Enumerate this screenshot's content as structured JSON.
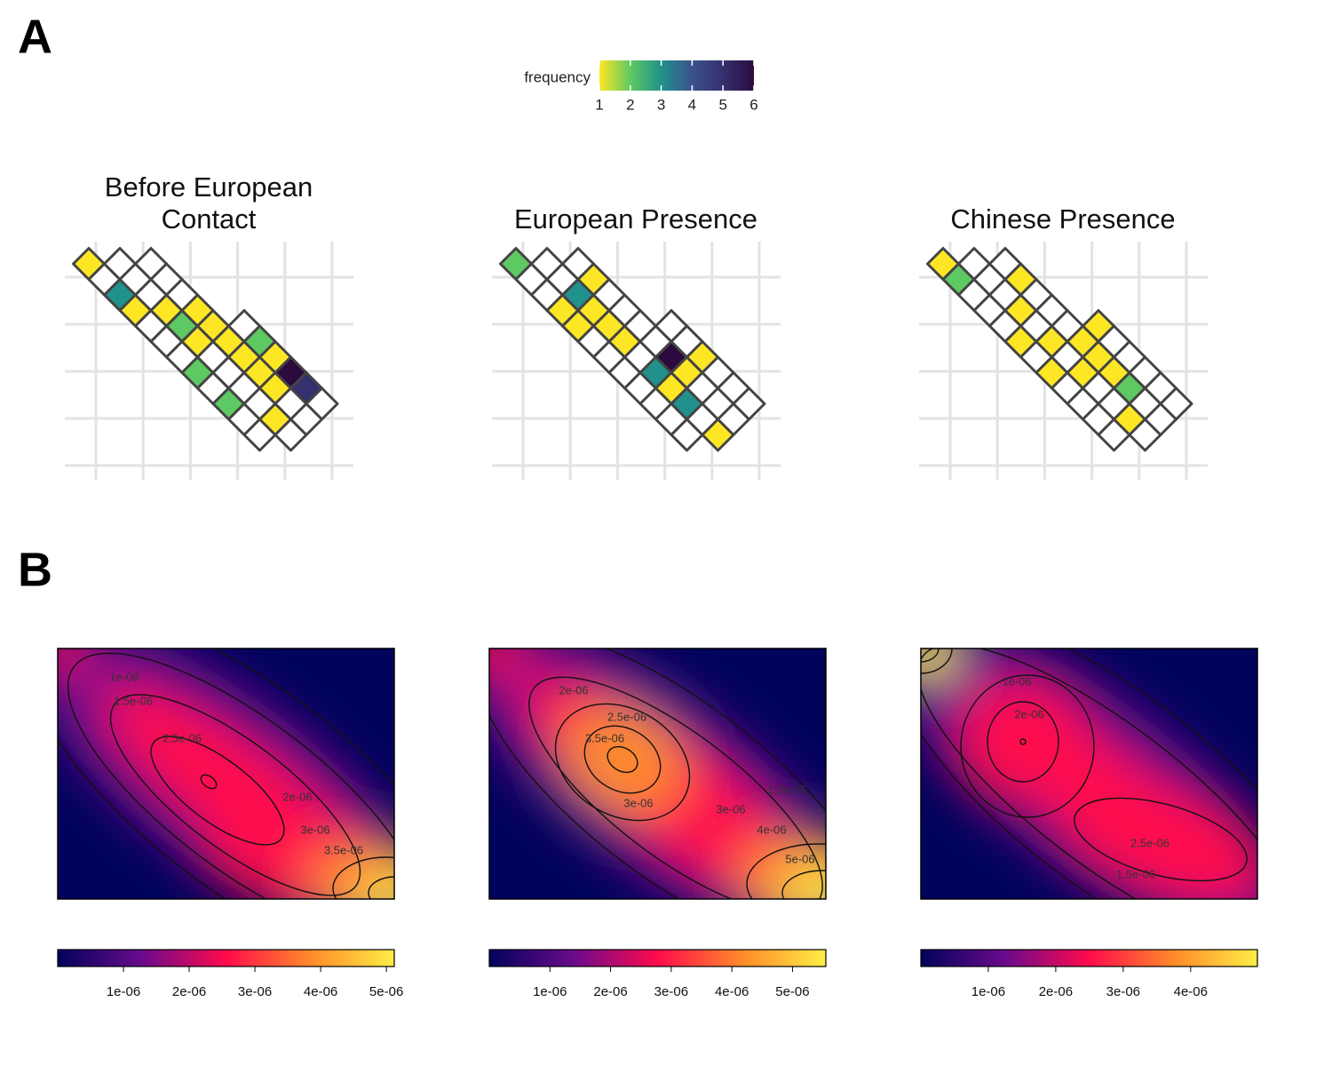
{
  "panel_labels": {
    "a": "A",
    "b": "B"
  },
  "frequency_legend": {
    "title": "frequency",
    "lim": [
      1,
      6
    ],
    "ticks": [
      1,
      2,
      3,
      4,
      5,
      6
    ],
    "colors": [
      "#fde725",
      "#5ec962",
      "#21918c",
      "#3b528b",
      "#35306e",
      "#2b0b3f"
    ]
  },
  "chart_data": [
    {
      "type": "grid-map",
      "title": "Before European Contact",
      "values": [
        [
          1
        ],
        [
          null,
          null
        ],
        [
          3,
          null,
          null
        ],
        [
          1,
          null,
          null
        ],
        [
          null,
          1,
          null
        ],
        [
          null,
          2,
          1
        ],
        [
          null,
          1,
          1
        ],
        [
          2,
          null,
          1,
          null
        ],
        [
          null,
          null,
          1,
          2
        ],
        [
          2,
          null,
          1,
          1
        ],
        [
          null,
          null,
          1,
          6
        ],
        [
          null,
          1,
          null,
          5
        ],
        [
          null,
          null,
          null
        ]
      ]
    },
    {
      "type": "grid-map",
      "title": "European Presence",
      "values": [
        [
          2
        ],
        [
          null,
          null
        ],
        [
          null,
          null,
          null
        ],
        [
          1,
          3,
          1
        ],
        [
          1,
          1,
          null
        ],
        [
          null,
          1,
          null
        ],
        [
          null,
          1,
          null
        ],
        [
          null,
          null,
          null,
          null
        ],
        [
          null,
          3,
          6,
          null
        ],
        [
          null,
          1,
          1,
          1
        ],
        [
          null,
          3,
          null,
          null
        ],
        [
          null,
          null,
          null,
          null
        ],
        [
          1,
          null,
          null
        ]
      ]
    },
    {
      "type": "grid-map",
      "title": "Chinese Presence",
      "values": [
        [
          1
        ],
        [
          2,
          null
        ],
        [
          null,
          null,
          null
        ],
        [
          null,
          null,
          1
        ],
        [
          null,
          1,
          null
        ],
        [
          1,
          null,
          null
        ],
        [
          null,
          1,
          null
        ],
        [
          1,
          null,
          1,
          1
        ],
        [
          null,
          1,
          1,
          null
        ],
        [
          null,
          null,
          1,
          null
        ],
        [
          null,
          null,
          2,
          null
        ],
        [
          null,
          1,
          null,
          null
        ],
        [
          null,
          null,
          null
        ]
      ]
    },
    {
      "type": "density",
      "colors": [
        "#00035c",
        "#6a0a8c",
        "#ff0a4c",
        "#ff8a2a",
        "#ffee44"
      ],
      "lim": [
        0,
        5.12e-06
      ],
      "ticks": [
        {
          "value": 1e-06,
          "label": "1e-06"
        },
        {
          "value": 2e-06,
          "label": "2e-06"
        },
        {
          "value": 3e-06,
          "label": "3e-06"
        },
        {
          "value": 4e-06,
          "label": "4e-06"
        },
        {
          "value": 5e-06,
          "label": "5e-06"
        }
      ],
      "contour_labels": [
        "1e-06",
        "1.5e-06",
        "2.5e-06",
        "2e-06",
        "3e-06",
        "3.5e-06"
      ]
    },
    {
      "type": "density",
      "colors": [
        "#00035c",
        "#6a0a8c",
        "#ff0a4c",
        "#ff8a2a",
        "#ffee44"
      ],
      "lim": [
        0,
        5.55e-06
      ],
      "ticks": [
        {
          "value": 1e-06,
          "label": "1e-06"
        },
        {
          "value": 2e-06,
          "label": "2e-06"
        },
        {
          "value": 3e-06,
          "label": "3e-06"
        },
        {
          "value": 4e-06,
          "label": "4e-06"
        },
        {
          "value": 5e-06,
          "label": "5e-06"
        }
      ],
      "contour_labels": [
        "2e-06",
        "2.5e-06",
        "3.5e-06",
        "3e-06",
        "1.5e-06",
        "3e-06",
        "4e-06",
        "5e-06"
      ]
    },
    {
      "type": "density",
      "colors": [
        "#00035c",
        "#6a0a8c",
        "#ff0a4c",
        "#ff8a2a",
        "#ffee44"
      ],
      "lim": [
        0,
        4.99e-06
      ],
      "ticks": [
        {
          "value": 1e-06,
          "label": "1e-06"
        },
        {
          "value": 2e-06,
          "label": "2e-06"
        },
        {
          "value": 3e-06,
          "label": "3e-06"
        },
        {
          "value": 4e-06,
          "label": "4e-06"
        }
      ],
      "contour_labels": [
        "1e-06",
        "2e-06",
        "2.5e-06",
        "1.5e-06"
      ]
    }
  ]
}
